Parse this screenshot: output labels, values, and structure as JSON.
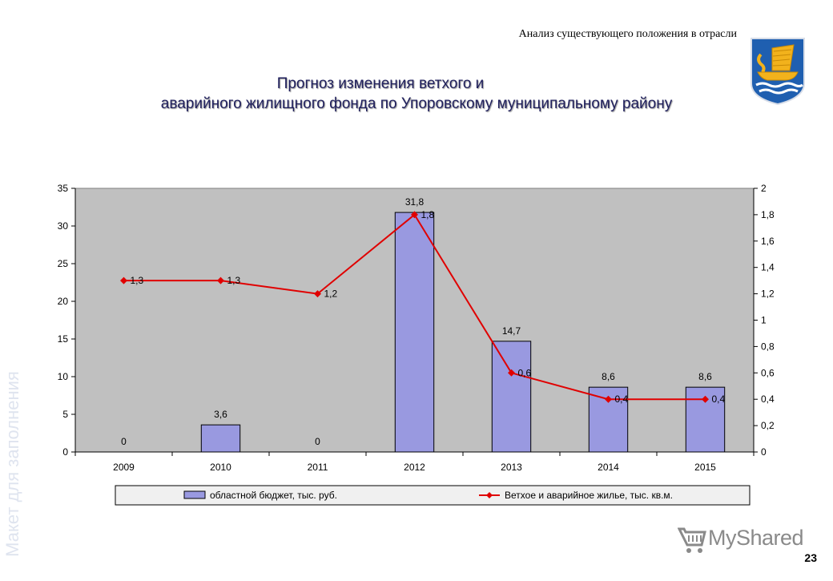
{
  "header": {
    "subtitle": "Анализ существующего положения в отрасли",
    "title_line1": "Прогноз изменения ветхого и",
    "title_line2": "аварийного жилищного фонда по Упоровскому муниципальному району"
  },
  "emblem": {
    "icon": "coat-of-arms-boat-icon",
    "colors": {
      "shield": "#1f5fb0",
      "sail": "#f2b21c",
      "boat": "#f2b21c",
      "water": "#ffffff"
    }
  },
  "chart_data": {
    "type": "bar+line",
    "categories": [
      "2009",
      "2010",
      "2011",
      "2012",
      "2013",
      "2014",
      "2015"
    ],
    "y_left": {
      "min": 0,
      "max": 35,
      "step": 5,
      "ticks": [
        "0",
        "5",
        "10",
        "15",
        "20",
        "25",
        "30",
        "35"
      ]
    },
    "y_right": {
      "min": 0,
      "max": 2,
      "step": 0.2,
      "ticks": [
        "0",
        "0,2",
        "0,4",
        "0,6",
        "0,8",
        "1",
        "1,2",
        "1,4",
        "1,6",
        "1,8",
        "2"
      ]
    },
    "series": [
      {
        "name": "областной бюджет, тыс. руб.",
        "type": "bar",
        "axis": "left",
        "color": "#9999e0",
        "values": [
          0,
          3.6,
          0,
          31.8,
          14.7,
          8.6,
          8.6
        ],
        "labels": [
          "0",
          "3,6",
          "0",
          "31,8",
          "14,7",
          "8,6",
          "8,6"
        ]
      },
      {
        "name": "Ветхое и аварийное жилье, тыс. кв.м.",
        "type": "line",
        "axis": "right",
        "color": "#e00000",
        "values": [
          1.3,
          1.3,
          1.2,
          1.8,
          0.6,
          0.4,
          0.4
        ],
        "labels": [
          "1,3",
          "1,3",
          "1,2",
          "1,8",
          "0,6",
          "0,4",
          "0,4"
        ]
      }
    ],
    "plot_background": "#c0c0c0",
    "grid": false,
    "legend_position": "bottom"
  },
  "watermark": {
    "text": "Макет для заполнения"
  },
  "brand": {
    "text": "MyShared",
    "icon": "shopping-cart-icon"
  },
  "page_number": "23"
}
